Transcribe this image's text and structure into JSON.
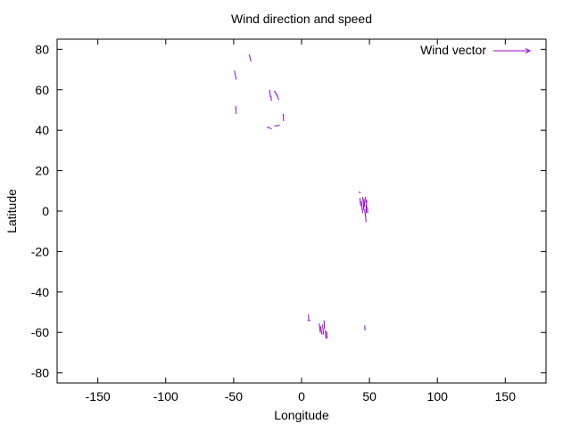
{
  "chart_data": {
    "type": "vector-field",
    "title": "Wind direction and speed",
    "xlabel": "Longitude",
    "ylabel": "Latitude",
    "xlim": [
      -180,
      180
    ],
    "ylim": [
      -85,
      85
    ],
    "xticks": [
      -150,
      -100,
      -50,
      0,
      50,
      100,
      150
    ],
    "yticks": [
      -80,
      -60,
      -40,
      -20,
      0,
      20,
      40,
      60,
      80
    ],
    "grid": false,
    "legend": {
      "position": "top-right",
      "entries": [
        "Wind vector"
      ]
    },
    "series": [
      {
        "name": "Wind vector",
        "color": "#9400d3",
        "vectors": [
          {
            "x": -49.5,
            "y": 69.5,
            "dx": 1.5,
            "dy": -4.5
          },
          {
            "x": -48.5,
            "y": 52.0,
            "dx": 0.4,
            "dy": -4.0
          },
          {
            "x": -38.5,
            "y": 77.5,
            "dx": 1.2,
            "dy": -3.5
          },
          {
            "x": -23.5,
            "y": 60.0,
            "dx": 0.6,
            "dy": -3.5
          },
          {
            "x": -22.5,
            "y": 57.0,
            "dx": 0.3,
            "dy": -2.5
          },
          {
            "x": -20.0,
            "y": 59.5,
            "dx": 1.5,
            "dy": -2.0
          },
          {
            "x": -18.5,
            "y": 58.0,
            "dx": 1.8,
            "dy": -3.0
          },
          {
            "x": -25.5,
            "y": 41.5,
            "dx": 3.5,
            "dy": -0.8
          },
          {
            "x": -20.0,
            "y": 42.0,
            "dx": 4.0,
            "dy": 0.5
          },
          {
            "x": -13.5,
            "y": 48.0,
            "dx": 0.3,
            "dy": -3.5
          },
          {
            "x": 42.0,
            "y": 9.5,
            "dx": 1.5,
            "dy": -0.5
          },
          {
            "x": 43.0,
            "y": 6.5,
            "dx": 0.5,
            "dy": -4.0
          },
          {
            "x": 44.0,
            "y": 5.0,
            "dx": 0.8,
            "dy": -4.5
          },
          {
            "x": 45.0,
            "y": 7.0,
            "dx": 0.6,
            "dy": -3.5
          },
          {
            "x": 45.5,
            "y": 3.5,
            "dx": 0.4,
            "dy": -3.0
          },
          {
            "x": 46.0,
            "y": 6.0,
            "dx": 0.5,
            "dy": -4.0
          },
          {
            "x": 46.5,
            "y": 1.0,
            "dx": 0.5,
            "dy": -3.5
          },
          {
            "x": 47.0,
            "y": 7.0,
            "dx": 0.4,
            "dy": -3.0
          },
          {
            "x": 47.5,
            "y": 3.0,
            "dx": 0.2,
            "dy": -4.0
          },
          {
            "x": 48.0,
            "y": 5.5,
            "dx": -0.2,
            "dy": -3.5
          },
          {
            "x": 47.0,
            "y": -1.5,
            "dx": 0.5,
            "dy": -4.0
          },
          {
            "x": 44.5,
            "y": 1.5,
            "dx": 0.6,
            "dy": -2.5
          },
          {
            "x": 48.5,
            "y": 2.0,
            "dx": 0.2,
            "dy": -3.0
          },
          {
            "x": 5.0,
            "y": -51.0,
            "dx": 0.3,
            "dy": -3.0
          },
          {
            "x": 4.5,
            "y": -54.0,
            "dx": 2.0,
            "dy": -0.2
          },
          {
            "x": 13.0,
            "y": -55.5,
            "dx": 0.8,
            "dy": -4.5
          },
          {
            "x": 14.0,
            "y": -57.0,
            "dx": 1.0,
            "dy": -4.0
          },
          {
            "x": 15.5,
            "y": -56.0,
            "dx": 0.6,
            "dy": -5.0
          },
          {
            "x": 16.5,
            "y": -54.0,
            "dx": 0.5,
            "dy": -4.5
          },
          {
            "x": 17.5,
            "y": -59.0,
            "dx": 0.4,
            "dy": -4.0
          },
          {
            "x": 18.5,
            "y": -59.5,
            "dx": 0.3,
            "dy": -3.5
          },
          {
            "x": 46.5,
            "y": -56.5,
            "dx": 0.2,
            "dy": -2.5
          }
        ]
      }
    ]
  }
}
